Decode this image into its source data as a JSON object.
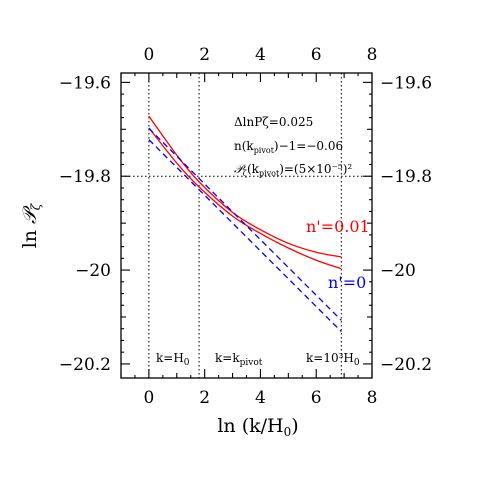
{
  "chart_data": {
    "type": "line",
    "xlabel": "ln (k/H₀)",
    "ylabel": "ln 𝒫ζ",
    "xlim": [
      -1,
      8
    ],
    "ylim": [
      -20.23,
      -19.58
    ],
    "xticks": [
      "0",
      "2",
      "4",
      "6",
      "8"
    ],
    "yticks": [
      "−19.6",
      "−19.8",
      "−20",
      "−20.2"
    ],
    "ytick_values": [
      -19.6,
      -19.8,
      -20.0,
      -20.2
    ],
    "xtick_values": [
      0,
      2,
      4,
      6,
      8
    ],
    "reference_lines": {
      "vertical": [
        0,
        1.8,
        6.9
      ],
      "horizontal": [
        -19.8
      ]
    },
    "annotations": {
      "line1": "ΔlnPζ=0.025",
      "line2": "n(k_pivot)−1=−0.06",
      "line3": "Pζ(k_pivot)=(5×10⁻⁵)²",
      "bottom_left": "k=H₀",
      "bottom_mid": "k=k_pivot",
      "bottom_right": "k=10³H₀"
    },
    "series": [
      {
        "name": "n'=0.01",
        "color": "#ff0000",
        "dash": "solid",
        "x": [
          0,
          1,
          1.8,
          3,
          4,
          5,
          6,
          6.9
        ],
        "y": [
          -19.672,
          -19.755,
          -19.812,
          -19.877,
          -19.914,
          -19.943,
          -19.962,
          -19.972
        ]
      },
      {
        "color": "#ff0000",
        "dash": "solid",
        "x": [
          0,
          1,
          1.8,
          3,
          4,
          5,
          6,
          6.9
        ],
        "y": [
          -19.697,
          -19.772,
          -19.823,
          -19.885,
          -19.922,
          -19.953,
          -19.979,
          -19.997
        ]
      },
      {
        "name": "n'=0",
        "color": "#0000ff",
        "dash": "dashed",
        "x": [
          0,
          6.9
        ],
        "y": [
          -19.698,
          -20.107
        ]
      },
      {
        "color": "#0000ff",
        "dash": "dashed",
        "x": [
          0,
          6.9
        ],
        "y": [
          -19.722,
          -20.131
        ]
      }
    ],
    "legend_labels": [
      {
        "text": "n'=0.01",
        "color": "#ff0000"
      },
      {
        "text": "n'=0",
        "color": "#0000ff"
      }
    ]
  }
}
